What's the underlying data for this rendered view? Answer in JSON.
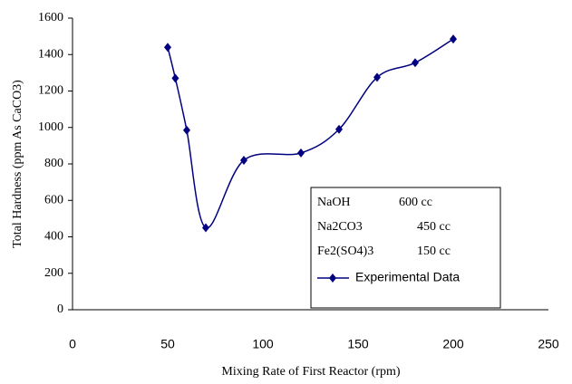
{
  "chart_data": {
    "type": "line",
    "x_label": "Mixing Rate of First Reactor (rpm)",
    "y_label": "Total Hardness (ppm As CaCO3)",
    "x": [
      50,
      54,
      60,
      70,
      90,
      120,
      140,
      160,
      180,
      200
    ],
    "series": [
      {
        "name": "Experimental Data",
        "color": "#000080",
        "values": [
          1440,
          1270,
          985,
          450,
          820,
          860,
          990,
          1275,
          1355,
          1485
        ]
      }
    ],
    "xlim": [
      0,
      250
    ],
    "xticks": [
      0,
      50,
      100,
      150,
      200,
      250
    ],
    "ylim": [
      0,
      1600
    ],
    "yticks": [
      0,
      200,
      400,
      600,
      800,
      1000,
      1200,
      1400,
      1600
    ],
    "annotations": [
      {
        "name": "NaOH",
        "amount": "600 cc"
      },
      {
        "name": "Na2CO3",
        "amount": "450 cc"
      },
      {
        "name": "Fe2(SO4)3",
        "amount": "150 cc"
      }
    ]
  }
}
